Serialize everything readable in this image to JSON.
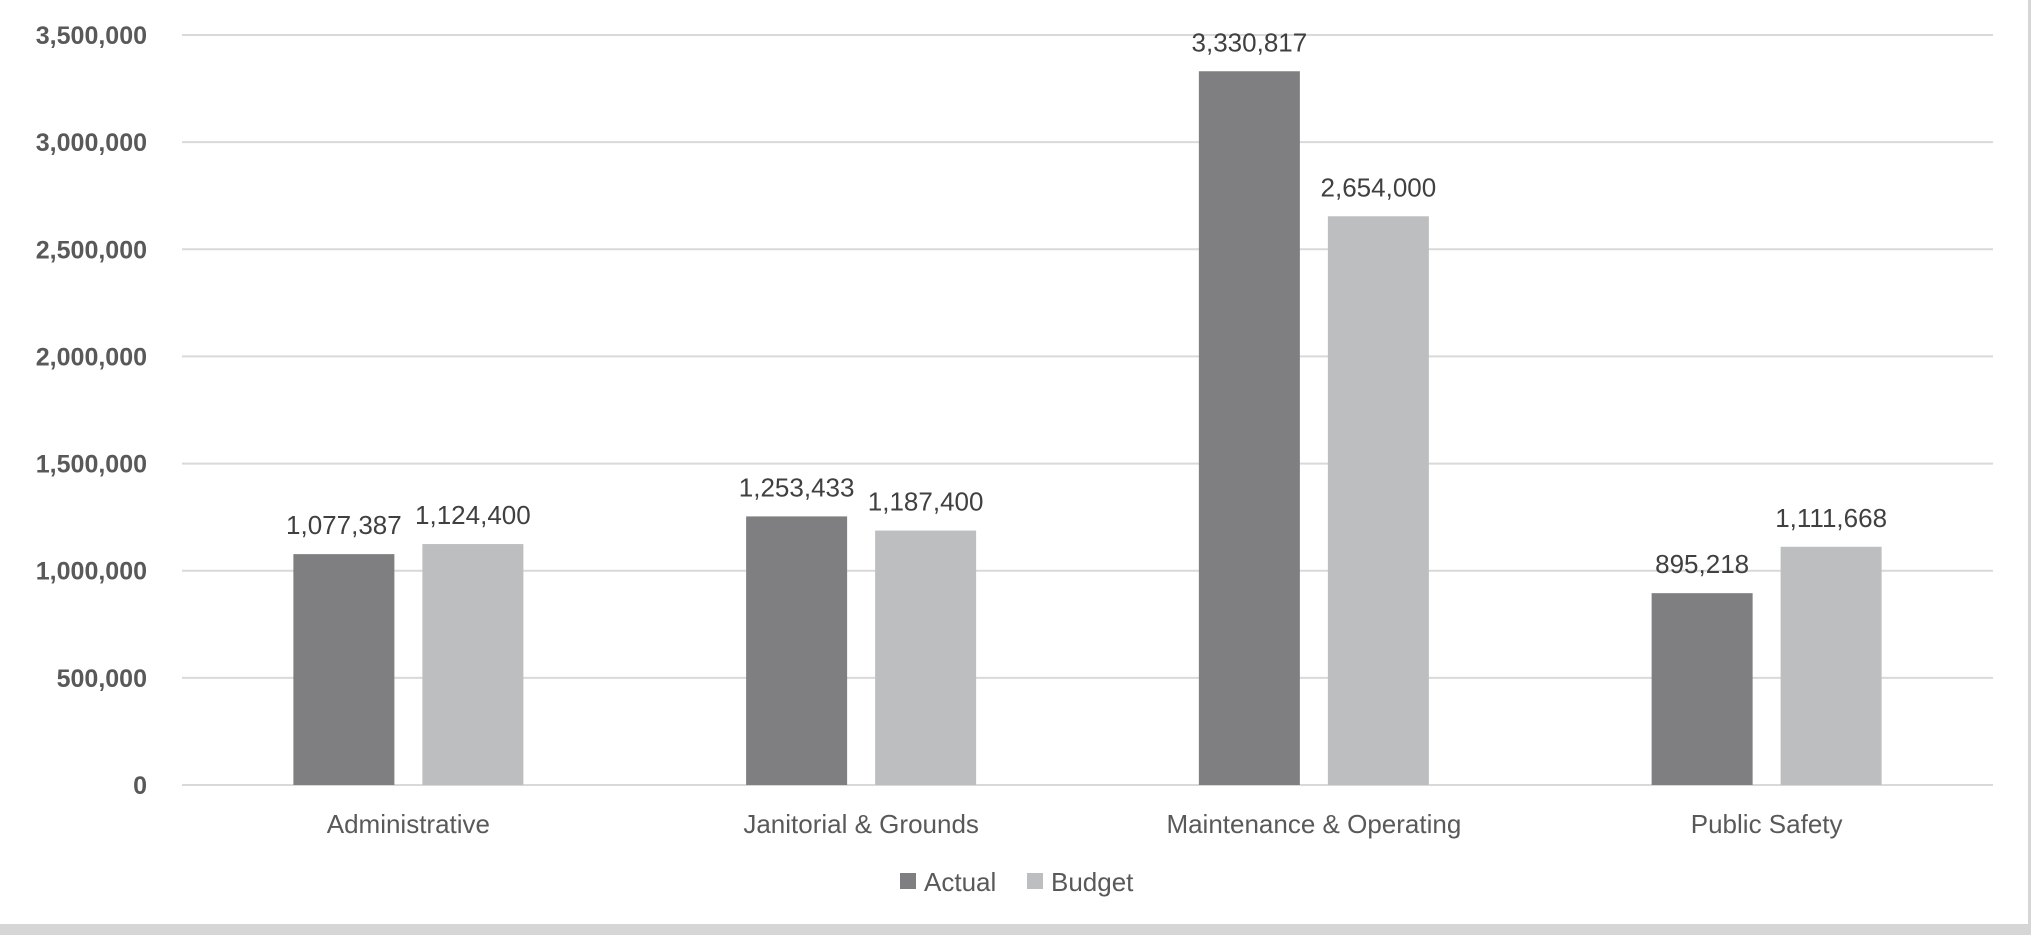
{
  "chart_data": {
    "type": "bar",
    "title": "",
    "xlabel": "",
    "ylabel": "",
    "categories": [
      "Administrative",
      "Janitorial & Grounds",
      "Maintenance & Operating",
      "Public Safety"
    ],
    "series": [
      {
        "name": "Actual",
        "color": "#7f7f82",
        "values": [
          1077387,
          1253433,
          3330817,
          895218
        ],
        "labels": [
          "1,077,387",
          "1,253,433",
          "3,330,817",
          "895,218"
        ]
      },
      {
        "name": "Budget",
        "color": "#bdbec0",
        "values": [
          1124400,
          1187400,
          2654000,
          1111668
        ],
        "labels": [
          "1,124,400",
          "1,187,400",
          "2,654,000",
          "1,111,668"
        ]
      }
    ],
    "ylim": [
      0,
      3500000
    ],
    "yticks": [
      0,
      500000,
      1000000,
      1500000,
      2000000,
      2500000,
      3000000,
      3500000
    ],
    "ytick_labels": [
      "0",
      "500,000",
      "1,000,000",
      "1,500,000",
      "2,000,000",
      "2,500,000",
      "3,000,000",
      "3,500,000"
    ],
    "grid": true,
    "legend_position": "bottom",
    "colors": {
      "gridline": "#d9d9d9",
      "axis_text": "#595959",
      "data_label": "#404040"
    }
  }
}
